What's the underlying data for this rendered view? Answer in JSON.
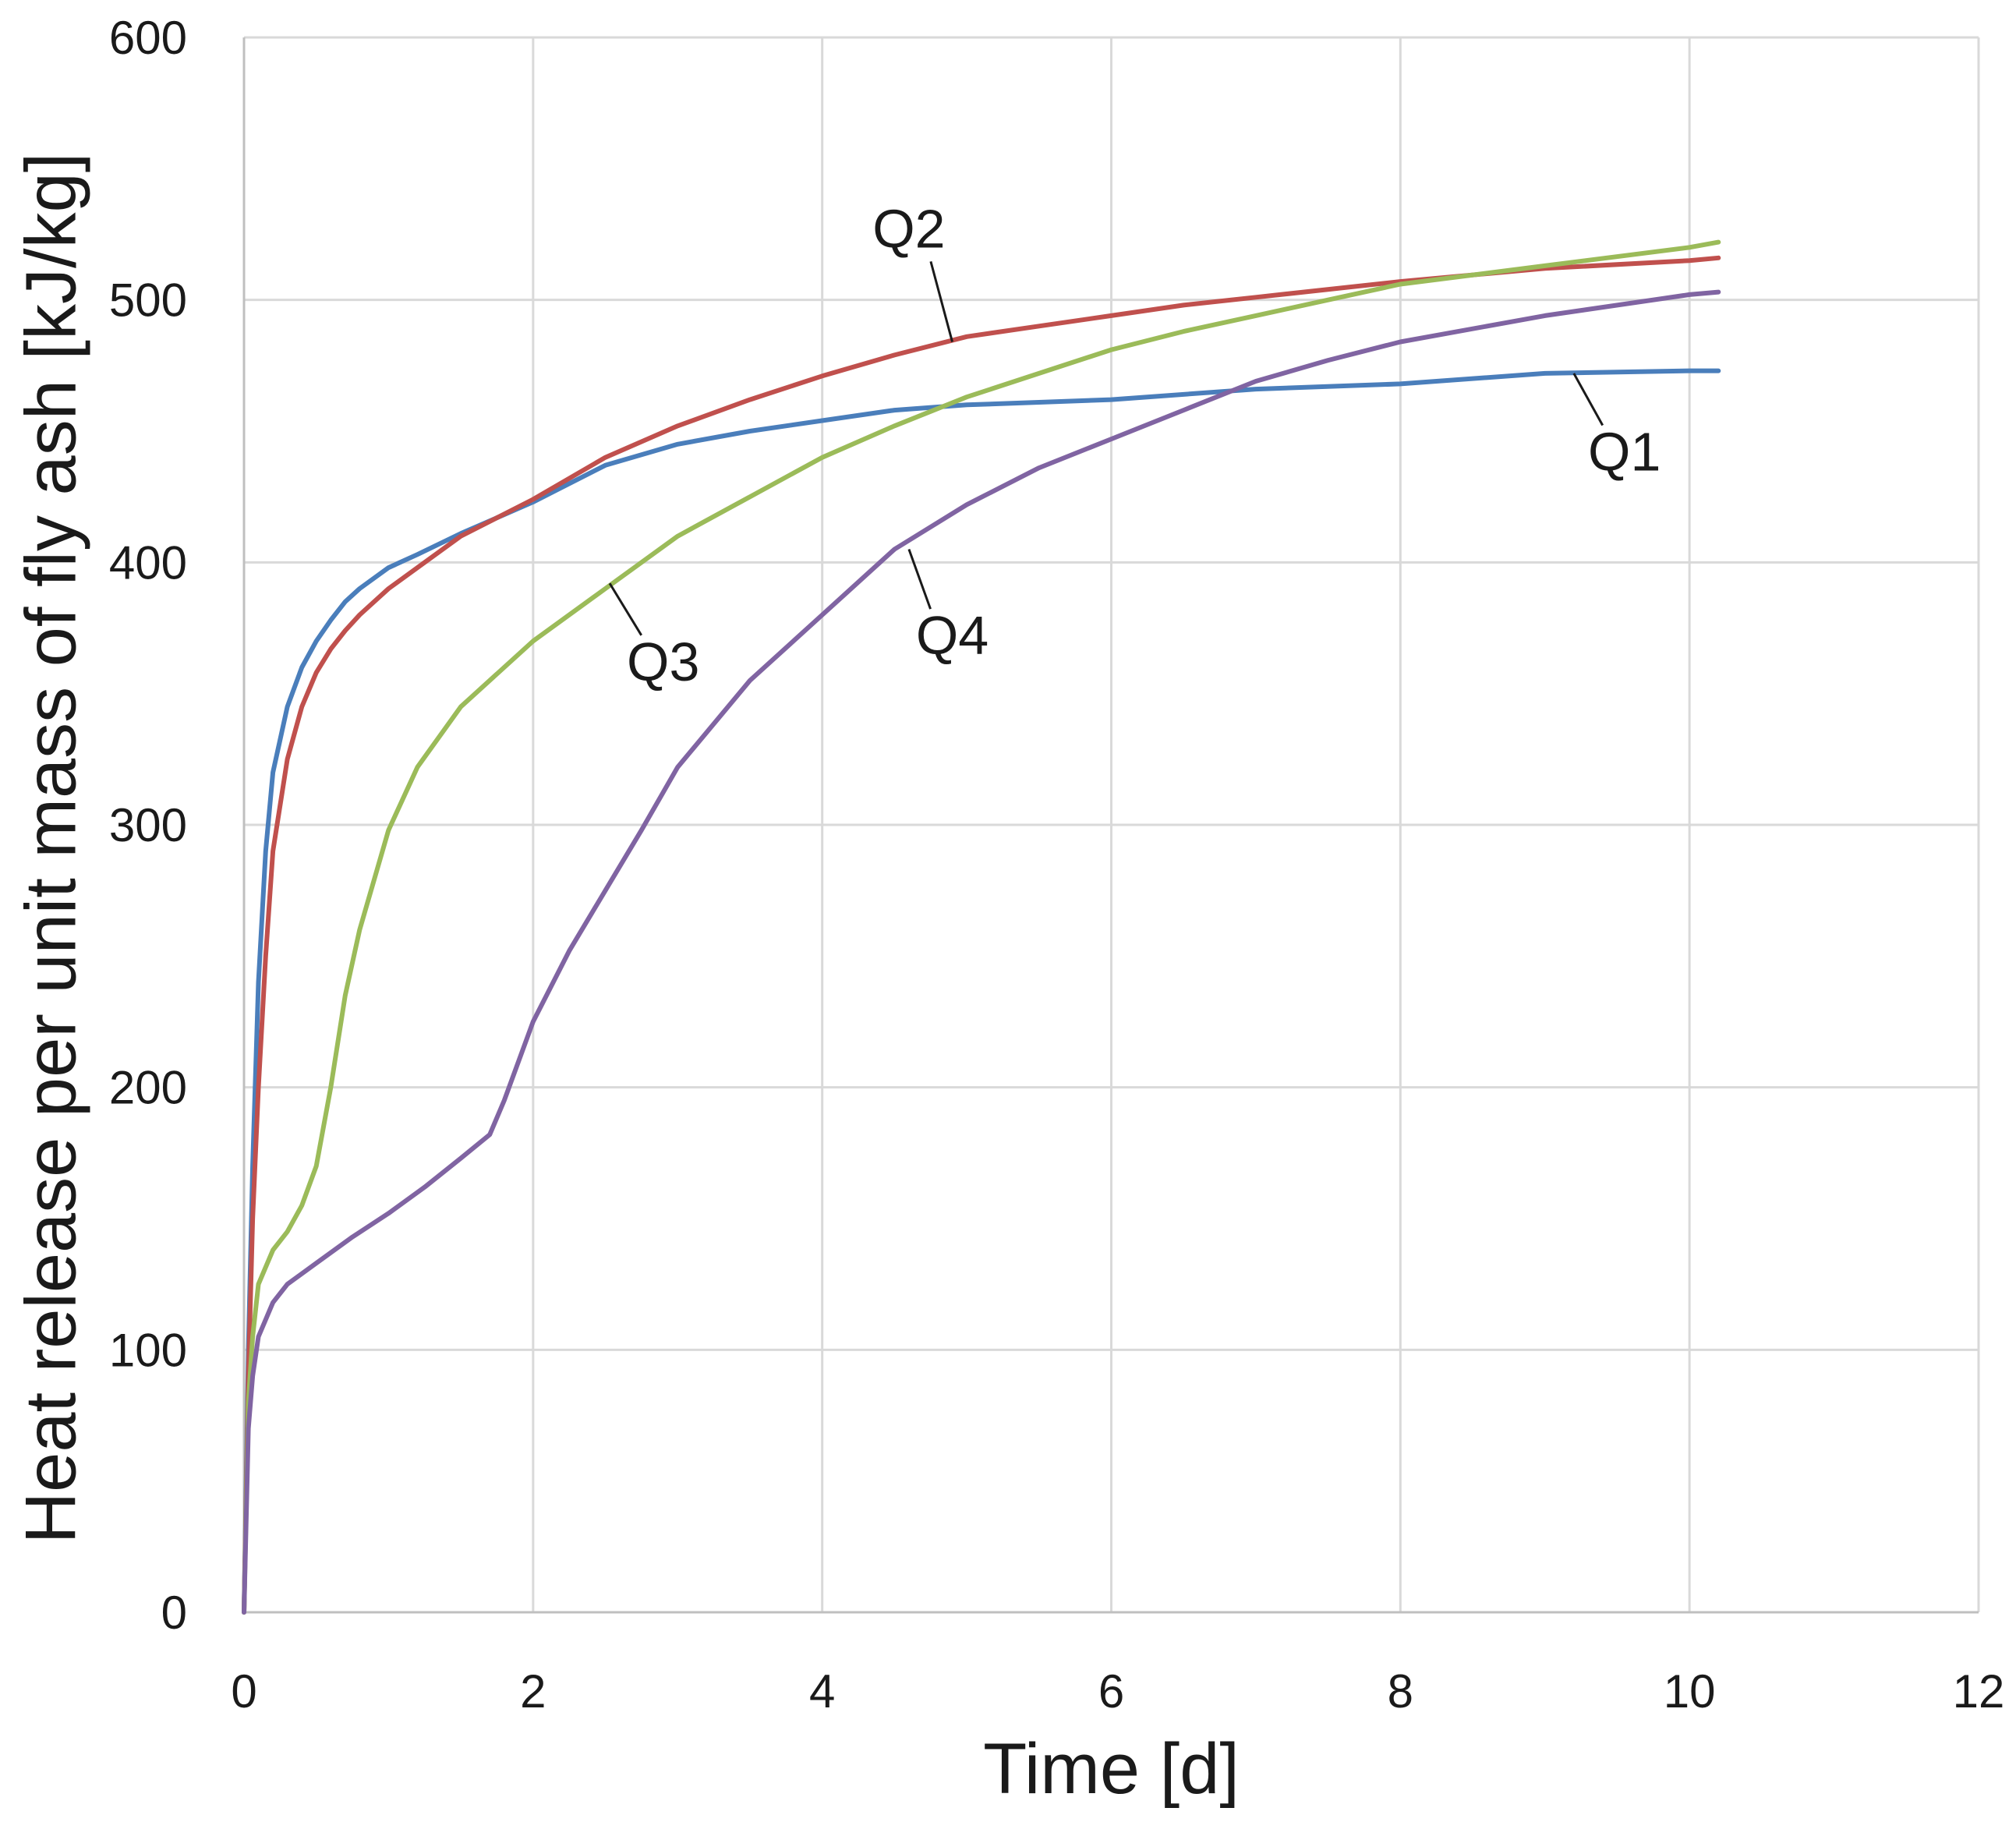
{
  "chart_data": {
    "type": "line",
    "title": "",
    "xlabel": "Time [d]",
    "ylabel": "Heat release per unit mass of fly ash [kJ/kg]",
    "xlim": [
      0,
      12
    ],
    "ylim": [
      0,
      600
    ],
    "xticks": [
      0,
      2,
      4,
      6,
      8,
      10,
      12
    ],
    "yticks": [
      0,
      100,
      200,
      300,
      400,
      500,
      600
    ],
    "grid": true,
    "series": [
      {
        "name": "Q1",
        "color": "#4a7ebb",
        "x": [
          0,
          0.03,
          0.06,
          0.1,
          0.15,
          0.2,
          0.3,
          0.4,
          0.5,
          0.6,
          0.7,
          0.8,
          1.0,
          1.2,
          1.5,
          2.0,
          2.5,
          3.0,
          3.5,
          4.0,
          4.5,
          5.0,
          5.5,
          6.0,
          7.0,
          8.0,
          9.0,
          10.0,
          10.2
        ],
        "y": [
          0,
          100,
          170,
          240,
          290,
          320,
          345,
          360,
          370,
          378,
          385,
          390,
          398,
          403,
          411,
          423,
          437,
          445,
          450,
          454,
          458,
          460,
          461,
          462,
          466,
          468,
          472,
          473,
          473
        ]
      },
      {
        "name": "Q2",
        "color": "#c0504d",
        "x": [
          0,
          0.03,
          0.06,
          0.1,
          0.15,
          0.2,
          0.3,
          0.4,
          0.5,
          0.6,
          0.7,
          0.8,
          1.0,
          1.2,
          1.5,
          2.0,
          2.5,
          3.0,
          3.5,
          4.0,
          4.5,
          5.0,
          5.5,
          6.0,
          6.5,
          7.0,
          8.0,
          9.0,
          10.0,
          10.2
        ],
        "y": [
          0,
          90,
          150,
          200,
          250,
          290,
          325,
          345,
          358,
          367,
          374,
          380,
          390,
          398,
          410,
          424,
          440,
          452,
          462,
          471,
          479,
          486,
          490,
          494,
          498,
          501,
          507,
          512,
          515,
          516
        ]
      },
      {
        "name": "Q3",
        "color": "#9bbb59",
        "x": [
          0,
          0.03,
          0.06,
          0.1,
          0.2,
          0.3,
          0.4,
          0.5,
          0.6,
          0.7,
          0.8,
          1.0,
          1.2,
          1.5,
          2.0,
          2.5,
          3.0,
          3.5,
          4.0,
          4.5,
          5.0,
          5.5,
          6.0,
          6.5,
          7.0,
          7.5,
          8.0,
          9.0,
          10.0,
          10.2
        ],
        "y": [
          0,
          80,
          105,
          125,
          138,
          145,
          155,
          170,
          200,
          235,
          260,
          298,
          322,
          345,
          370,
          390,
          410,
          425,
          440,
          452,
          463,
          472,
          481,
          488,
          494,
          500,
          506,
          513,
          520,
          522
        ]
      },
      {
        "name": "Q4",
        "color": "#8064a2",
        "x": [
          0,
          0.03,
          0.06,
          0.1,
          0.2,
          0.3,
          0.5,
          0.75,
          1.0,
          1.25,
          1.5,
          1.7,
          1.8,
          2.0,
          2.25,
          2.5,
          2.75,
          3.0,
          3.5,
          4.0,
          4.5,
          5.0,
          5.5,
          6.0,
          6.5,
          7.0,
          7.5,
          8.0,
          9.0,
          10.0,
          10.2
        ],
        "y": [
          0,
          70,
          90,
          105,
          118,
          125,
          133,
          143,
          152,
          162,
          173,
          182,
          195,
          225,
          252,
          275,
          298,
          322,
          355,
          380,
          405,
          422,
          436,
          447,
          458,
          469,
          477,
          484,
          494,
          502,
          503
        ]
      }
    ],
    "annotations": [
      {
        "text": "Q1",
        "series": "Q1",
        "anchor_x": 9.2,
        "anchor_y": 472,
        "label_x": 9.55,
        "label_y": 435
      },
      {
        "text": "Q2",
        "series": "Q2",
        "anchor_x": 4.9,
        "anchor_y": 484,
        "label_x": 4.6,
        "label_y": 520
      },
      {
        "text": "Q3",
        "series": "Q3",
        "anchor_x": 2.53,
        "anchor_y": 392,
        "label_x": 2.9,
        "label_y": 355
      },
      {
        "text": "Q4",
        "series": "Q4",
        "anchor_x": 4.6,
        "anchor_y": 405,
        "label_x": 4.9,
        "label_y": 365
      }
    ]
  }
}
